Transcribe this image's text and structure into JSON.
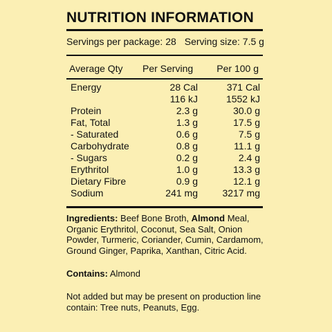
{
  "title": "NUTRITION INFORMATION",
  "servings_per_package": "Servings per package: 28",
  "serving_size": "Serving size: 7.5 g",
  "columns": {
    "name": "Average Qty",
    "per_serving": "Per Serving",
    "per_100g": "Per 100 g"
  },
  "rows": [
    {
      "name": "Energy",
      "per_serving": "28 Cal",
      "per_100g": "371 Cal"
    },
    {
      "name": "",
      "per_serving": "116 kJ",
      "per_100g": "1552 kJ"
    },
    {
      "name": "Protein",
      "per_serving": "2.3 g",
      "per_100g": "30.0 g"
    },
    {
      "name": "Fat, Total",
      "per_serving": "1.3 g",
      "per_100g": "17.5 g"
    },
    {
      "name": "- Saturated",
      "per_serving": "0.6 g",
      "per_100g": "7.5 g"
    },
    {
      "name": "Carbohydrate",
      "per_serving": "0.8 g",
      "per_100g": "11.1 g"
    },
    {
      "name": "- Sugars",
      "per_serving": "0.2 g",
      "per_100g": "2.4 g"
    },
    {
      "name": "Erythritol",
      "per_serving": "1.0 g",
      "per_100g": "13.3 g"
    },
    {
      "name": "Dietary Fibre",
      "per_serving": "0.9 g",
      "per_100g": "12.1 g"
    },
    {
      "name": "Sodium",
      "per_serving": "241 mg",
      "per_100g": "3217 mg"
    }
  ],
  "ingredients": {
    "label": "Ingredients:",
    "before": "Beef Bone Broth,",
    "bold_item": "Almond",
    "after": "Meal, Organic Erythritol, Coconut, Sea Salt, Onion Powder, Turmeric, Coriander, Cumin, Cardamom, Ground Ginger, Paprika, Xanthan, Citric Acid."
  },
  "contains": {
    "label": "Contains:",
    "value": "Almond"
  },
  "notice": "Not added but may be present on production line contain: Tree nuts, Peanuts, Egg.",
  "colors": {
    "background": "#FBEFB4",
    "text": "#111111"
  }
}
